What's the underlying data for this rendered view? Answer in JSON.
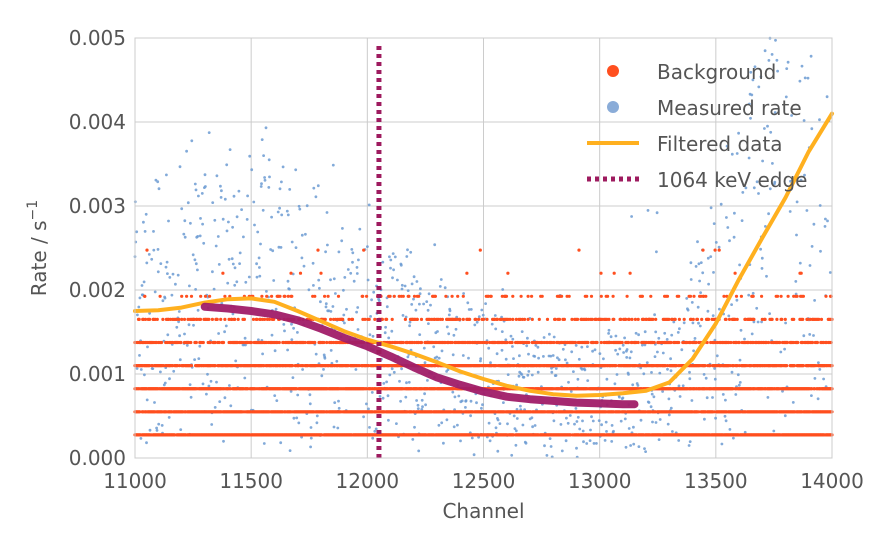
{
  "chart_data": {
    "type": "scatter",
    "xlabel": "Channel",
    "ylabel_main": "Rate / s",
    "ylabel_exp": "−1",
    "xlim": [
      11000,
      14000
    ],
    "ylim": [
      0,
      0.005
    ],
    "grid": true,
    "legend_position": "top-right",
    "x_ticks": [
      {
        "value": 11000,
        "label": "11000"
      },
      {
        "value": 11500,
        "label": "11500"
      },
      {
        "value": 12000,
        "label": "12000"
      },
      {
        "value": 12500,
        "label": "12500"
      },
      {
        "value": 13000,
        "label": "13000"
      },
      {
        "value": 13500,
        "label": "13500"
      },
      {
        "value": 14000,
        "label": "14000"
      }
    ],
    "y_ticks": [
      {
        "value": 0.0,
        "label": "0.000"
      },
      {
        "value": 0.001,
        "label": "0.001"
      },
      {
        "value": 0.002,
        "label": "0.002"
      },
      {
        "value": 0.003,
        "label": "0.003"
      },
      {
        "value": 0.004,
        "label": "0.004"
      },
      {
        "value": 0.005,
        "label": "0.005"
      }
    ],
    "series": [
      {
        "name": "Background",
        "kind": "scatter",
        "color": "#ff4f1f",
        "levels": [
          0.000275,
          0.00055,
          0.000825,
          0.0011,
          0.001375,
          0.00165,
          0.001925
        ],
        "level_density": [
          0.95,
          0.95,
          0.9,
          0.75,
          0.55,
          0.3,
          0.1
        ],
        "x_range": [
          11000,
          14000
        ]
      },
      {
        "name": "Measured rate",
        "kind": "scatter",
        "color": "#6c9bd2"
      },
      {
        "name": "Filtered data",
        "kind": "line",
        "color": "#ffb01f",
        "x": [
          11000,
          11100,
          11200,
          11300,
          11400,
          11500,
          11600,
          11700,
          11800,
          11900,
          12000,
          12100,
          12200,
          12300,
          12400,
          12500,
          12600,
          12700,
          12800,
          12900,
          13000,
          13100,
          13200,
          13300,
          13400,
          13500,
          13600,
          13700,
          13800,
          13900,
          14000
        ],
        "y": [
          0.00175,
          0.00176,
          0.00179,
          0.00185,
          0.00189,
          0.0019,
          0.00186,
          0.00175,
          0.00163,
          0.00151,
          0.00141,
          0.00133,
          0.00124,
          0.00114,
          0.00103,
          0.00094,
          0.00086,
          0.0008,
          0.00076,
          0.00074,
          0.00075,
          0.00077,
          0.0008,
          0.0009,
          0.00118,
          0.0016,
          0.00213,
          0.00262,
          0.0031,
          0.00365,
          0.0041
        ]
      },
      {
        "name": "",
        "kind": "line",
        "color": "#a01c68",
        "x": [
          11300,
          11400,
          11500,
          11600,
          11700,
          11800,
          11900,
          12000,
          12100,
          12200,
          12300,
          12400,
          12500,
          12600,
          12700,
          12800,
          12900,
          13000,
          13100,
          13150
        ],
        "y": [
          0.0018,
          0.00178,
          0.00175,
          0.00171,
          0.00164,
          0.00154,
          0.00143,
          0.00133,
          0.00121,
          0.00108,
          0.00096,
          0.00087,
          0.00079,
          0.00073,
          0.0007,
          0.00068,
          0.00066,
          0.00065,
          0.00064,
          0.00064
        ]
      },
      {
        "name": "1064 keV edge",
        "kind": "vline",
        "color": "#9e1b5f",
        "x": 12050
      }
    ],
    "legend": [
      {
        "label": "Background",
        "marker": "dot",
        "color": "#ff4f1f"
      },
      {
        "label": "Measured rate",
        "marker": "dot",
        "color": "#8aacd8"
      },
      {
        "label": "Filtered data",
        "marker": "line",
        "color": "#ffb01f"
      },
      {
        "label": "1064 keV edge",
        "marker": "dash",
        "color": "#9e1b5f"
      }
    ]
  }
}
